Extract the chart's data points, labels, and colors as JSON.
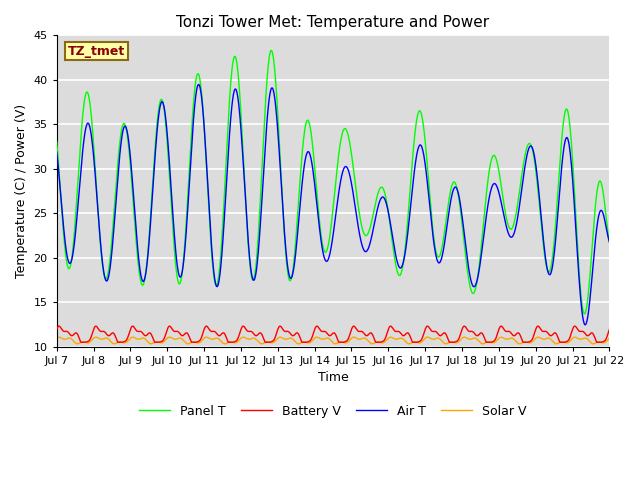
{
  "title": "Tonzi Tower Met: Temperature and Power",
  "xlabel": "Time",
  "ylabel": "Temperature (C) / Power (V)",
  "annotation_text": "TZ_tmet",
  "ylim": [
    10,
    45
  ],
  "yticks": [
    10,
    15,
    20,
    25,
    30,
    35,
    40,
    45
  ],
  "x_start": 7,
  "x_end": 22,
  "xtick_positions": [
    7,
    8,
    9,
    10,
    11,
    12,
    13,
    14,
    15,
    16,
    17,
    18,
    19,
    20,
    21,
    22
  ],
  "xtick_labels": [
    "Jul 7",
    "Jul 8",
    "Jul 9",
    "Jul 10",
    "Jul 11",
    "Jul 12",
    "Jul 13",
    "Jul 14",
    "Jul 15",
    "Jul 16",
    "Jul 17",
    "Jul 18",
    "Jul 19",
    "Jul 20",
    "Jul 21",
    "Jul 22"
  ],
  "panel_t_color": "#00FF00",
  "battery_v_color": "#FF0000",
  "air_t_color": "#0000FF",
  "solar_v_color": "#FFA500",
  "bg_color": "#DCDCDC",
  "grid_color": "#FFFFFF",
  "title_fontsize": 11,
  "legend_fontsize": 9,
  "axis_label_fontsize": 9,
  "tick_labelsize": 8
}
